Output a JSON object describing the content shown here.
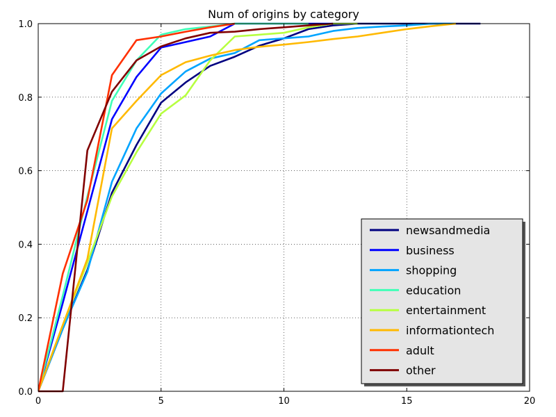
{
  "chart_data": {
    "type": "line",
    "title": "Num of origins by category",
    "xlabel": "",
    "ylabel": "",
    "xlim": [
      0,
      20
    ],
    "ylim": [
      0,
      1.0
    ],
    "xticks": [
      0,
      5,
      10,
      15,
      20
    ],
    "yticks": [
      0.0,
      0.2,
      0.4,
      0.6,
      0.8,
      1.0
    ],
    "xtick_labels": [
      "0",
      "5",
      "10",
      "15",
      "20"
    ],
    "ytick_labels": [
      "0.0",
      "0.2",
      "0.4",
      "0.6",
      "0.8",
      "1.0"
    ],
    "grid": true,
    "legend_position": "lower-right",
    "series": [
      {
        "name": "newsandmedia",
        "color": "#000080",
        "x": [
          0,
          1,
          2,
          3,
          4,
          5,
          6,
          7,
          8,
          9,
          10,
          11,
          12,
          13,
          14,
          15,
          16,
          17,
          18
        ],
        "y": [
          0.0,
          0.17,
          0.33,
          0.54,
          0.67,
          0.785,
          0.84,
          0.885,
          0.91,
          0.94,
          0.96,
          0.985,
          0.995,
          1.0,
          1.0,
          1.0,
          1.0,
          1.0,
          1.0
        ]
      },
      {
        "name": "business",
        "color": "#0000ff",
        "x": [
          0,
          1,
          2,
          3,
          4,
          5,
          6,
          7,
          8,
          9,
          10,
          11,
          12,
          13
        ],
        "y": [
          0.0,
          0.24,
          0.49,
          0.74,
          0.855,
          0.935,
          0.95,
          0.965,
          1.0,
          1.0,
          1.0,
          1.0,
          1.0,
          1.0
        ]
      },
      {
        "name": "shopping",
        "color": "#00a4ff",
        "x": [
          0,
          1,
          2,
          3,
          4,
          5,
          6,
          7,
          8,
          9,
          10,
          11,
          12,
          13,
          14,
          15,
          16,
          17
        ],
        "y": [
          0.0,
          0.17,
          0.325,
          0.57,
          0.715,
          0.81,
          0.87,
          0.905,
          0.92,
          0.955,
          0.96,
          0.965,
          0.98,
          0.988,
          0.992,
          0.995,
          1.0,
          1.0
        ]
      },
      {
        "name": "education",
        "color": "#40ffb7",
        "x": [
          0,
          1,
          2,
          3,
          4,
          5,
          6,
          7,
          8,
          9,
          10,
          11
        ],
        "y": [
          0.0,
          0.26,
          0.53,
          0.79,
          0.9,
          0.97,
          0.985,
          0.992,
          1.0,
          1.0,
          1.0,
          1.0
        ]
      },
      {
        "name": "entertainment",
        "color": "#b7ff40",
        "x": [
          0,
          1,
          2,
          3,
          4,
          5,
          6,
          7,
          8,
          9,
          10,
          11,
          12,
          13
        ],
        "y": [
          0.0,
          0.18,
          0.35,
          0.53,
          0.65,
          0.755,
          0.805,
          0.9,
          0.965,
          0.97,
          0.975,
          0.99,
          1.0,
          1.0
        ]
      },
      {
        "name": "informationtech",
        "color": "#ffb900",
        "x": [
          0,
          1,
          2,
          3,
          4,
          5,
          6,
          7,
          8,
          9,
          10,
          11,
          12,
          13,
          14,
          15,
          16,
          17
        ],
        "y": [
          0.0,
          0.18,
          0.36,
          0.715,
          0.79,
          0.86,
          0.895,
          0.913,
          0.928,
          0.937,
          0.943,
          0.95,
          0.958,
          0.965,
          0.975,
          0.985,
          0.993,
          1.0
        ]
      },
      {
        "name": "adult",
        "color": "#ff3000",
        "x": [
          0,
          1,
          2,
          3,
          4,
          5,
          6,
          7,
          8
        ],
        "y": [
          0.0,
          0.32,
          0.52,
          0.86,
          0.955,
          0.965,
          0.978,
          0.99,
          1.0
        ]
      },
      {
        "name": "other",
        "color": "#800000",
        "x": [
          0,
          1,
          2,
          3,
          4,
          5,
          6,
          7,
          8,
          9,
          10,
          11,
          12
        ],
        "y": [
          0.0,
          0.0,
          0.655,
          0.815,
          0.9,
          0.938,
          0.96,
          0.975,
          0.978,
          0.985,
          0.99,
          0.995,
          1.0
        ]
      }
    ]
  }
}
